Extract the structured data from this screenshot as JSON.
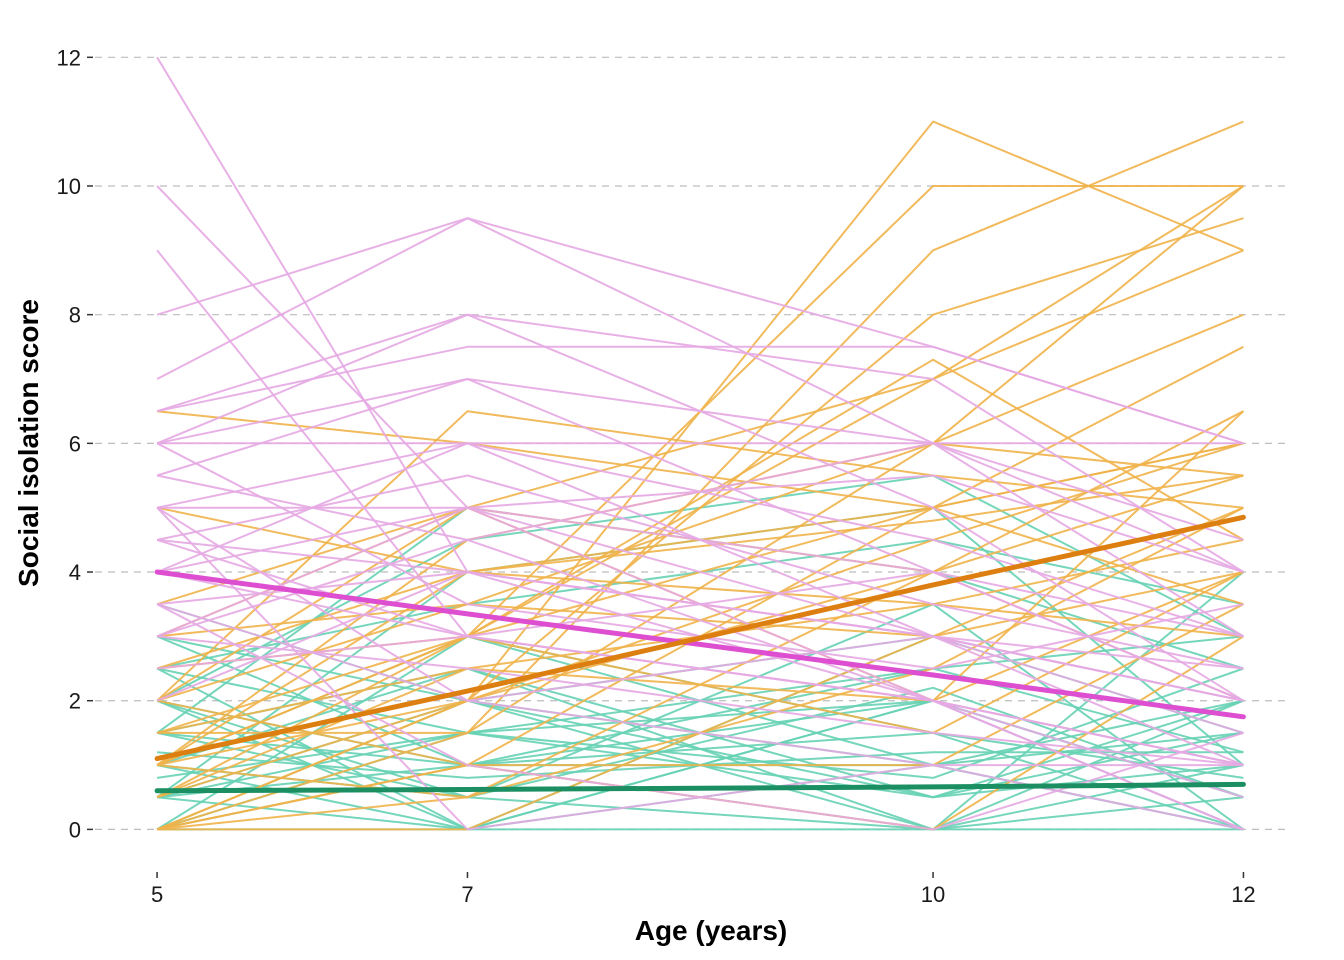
{
  "chart_data": {
    "type": "line",
    "title": "",
    "xlabel": "Age (years)",
    "ylabel": "Social isolation score",
    "x": [
      5,
      7,
      10,
      12
    ],
    "x_tick_labels": [
      "5",
      "7",
      "10",
      "12"
    ],
    "y_ticks": [
      0,
      2,
      4,
      6,
      8,
      10,
      12
    ],
    "y_tick_labels": [
      "0",
      "2",
      "4",
      "6",
      "8",
      "10",
      "12"
    ],
    "xlim": [
      4.6,
      12.3
    ],
    "ylim": [
      -0.6,
      12.3
    ],
    "grid": "horizontal dashed",
    "legend": "none",
    "group_colors": {
      "decreasing": "#e6a8e3",
      "increasing": "#f0b24a",
      "low_stable": "#66d2b4"
    },
    "trend_colors": {
      "decreasing": "#dd4fd0",
      "increasing": "#dd7f10",
      "low_stable": "#1b8e62"
    },
    "series": [
      {
        "group": "decreasing",
        "values": [
          4.0,
          3.35,
          2.4,
          1.75
        ],
        "role": "mean-trend"
      },
      {
        "group": "increasing",
        "values": [
          1.1,
          2.15,
          3.8,
          4.85
        ],
        "role": "mean-trend"
      },
      {
        "group": "low_stable",
        "values": [
          0.6,
          0.62,
          0.66,
          0.7
        ],
        "role": "mean-trend"
      },
      {
        "group": "decreasing",
        "values": [
          12,
          4,
          3,
          2
        ]
      },
      {
        "group": "decreasing",
        "values": [
          10,
          5,
          2,
          1
        ]
      },
      {
        "group": "decreasing",
        "values": [
          9,
          3,
          2,
          1
        ]
      },
      {
        "group": "decreasing",
        "values": [
          8,
          9.5,
          6,
          4
        ]
      },
      {
        "group": "decreasing",
        "values": [
          7,
          9.5,
          7.5,
          6
        ]
      },
      {
        "group": "decreasing",
        "values": [
          6.5,
          8,
          7,
          4
        ]
      },
      {
        "group": "decreasing",
        "values": [
          6.5,
          7.5,
          7.5,
          6
        ]
      },
      {
        "group": "decreasing",
        "values": [
          6,
          7,
          6,
          3
        ]
      },
      {
        "group": "decreasing",
        "values": [
          6,
          8,
          5,
          2
        ]
      },
      {
        "group": "decreasing",
        "values": [
          5.5,
          7,
          4,
          2
        ]
      },
      {
        "group": "decreasing",
        "values": [
          5,
          6,
          4.5,
          3
        ]
      },
      {
        "group": "decreasing",
        "values": [
          5,
          5,
          3,
          1
        ]
      },
      {
        "group": "decreasing",
        "values": [
          4.5,
          4,
          2,
          1
        ]
      },
      {
        "group": "decreasing",
        "values": [
          4.5,
          5.5,
          3.5,
          2.5
        ]
      },
      {
        "group": "decreasing",
        "values": [
          4,
          3,
          2,
          0
        ]
      },
      {
        "group": "decreasing",
        "values": [
          4,
          6,
          3,
          2
        ]
      },
      {
        "group": "decreasing",
        "values": [
          3.5,
          4,
          3,
          1.5
        ]
      },
      {
        "group": "decreasing",
        "values": [
          3.5,
          2,
          1,
          1
        ]
      },
      {
        "group": "decreasing",
        "values": [
          3,
          4.5,
          2,
          0
        ]
      },
      {
        "group": "decreasing",
        "values": [
          3,
          2.5,
          1.5,
          1
        ]
      },
      {
        "group": "decreasing",
        "values": [
          2.5,
          3,
          2,
          0.5
        ]
      },
      {
        "group": "decreasing",
        "values": [
          2,
          4,
          3,
          2
        ]
      },
      {
        "group": "decreasing",
        "values": [
          5,
          0,
          1,
          0
        ]
      },
      {
        "group": "decreasing",
        "values": [
          6,
          6,
          6,
          6
        ]
      },
      {
        "group": "decreasing",
        "values": [
          4,
          5,
          5.5,
          4
        ]
      },
      {
        "group": "decreasing",
        "values": [
          5.5,
          4.5,
          6,
          4.5
        ]
      },
      {
        "group": "decreasing",
        "values": [
          3,
          5,
          4,
          3
        ]
      },
      {
        "group": "decreasing",
        "values": [
          4.5,
          3,
          4,
          2
        ]
      },
      {
        "group": "decreasing",
        "values": [
          6,
          3.5,
          2.5,
          3.5
        ]
      },
      {
        "group": "decreasing",
        "values": [
          5,
          2,
          3,
          2.5
        ]
      },
      {
        "group": "decreasing",
        "values": [
          3.5,
          1,
          0,
          1.5
        ]
      },
      {
        "group": "increasing",
        "values": [
          0,
          2,
          11,
          9
        ]
      },
      {
        "group": "increasing",
        "values": [
          1,
          3,
          10,
          10
        ]
      },
      {
        "group": "increasing",
        "values": [
          0,
          1.5,
          9,
          11
        ]
      },
      {
        "group": "increasing",
        "values": [
          0.5,
          2,
          8,
          9.5
        ]
      },
      {
        "group": "increasing",
        "values": [
          1,
          3,
          7,
          10
        ]
      },
      {
        "group": "increasing",
        "values": [
          2,
          5,
          7,
          9
        ]
      },
      {
        "group": "increasing",
        "values": [
          1.5,
          1.5,
          6,
          8
        ]
      },
      {
        "group": "increasing",
        "values": [
          0,
          1,
          5,
          7.5
        ]
      },
      {
        "group": "increasing",
        "values": [
          0,
          0.5,
          4,
          6.5
        ]
      },
      {
        "group": "increasing",
        "values": [
          1,
          2,
          4.5,
          6
        ]
      },
      {
        "group": "increasing",
        "values": [
          2.5,
          3,
          5,
          6
        ]
      },
      {
        "group": "increasing",
        "values": [
          6.5,
          6,
          5,
          6
        ]
      },
      {
        "group": "increasing",
        "values": [
          2,
          6.5,
          5.5,
          5
        ]
      },
      {
        "group": "increasing",
        "values": [
          3.5,
          5,
          4,
          5.5
        ]
      },
      {
        "group": "increasing",
        "values": [
          0,
          0,
          3,
          5
        ]
      },
      {
        "group": "increasing",
        "values": [
          1,
          4,
          3.5,
          4.5
        ]
      },
      {
        "group": "increasing",
        "values": [
          3,
          3.5,
          3,
          4
        ]
      },
      {
        "group": "increasing",
        "values": [
          0.5,
          2.5,
          2,
          4
        ]
      },
      {
        "group": "increasing",
        "values": [
          2,
          1,
          1,
          3.5
        ]
      },
      {
        "group": "increasing",
        "values": [
          1.5,
          2.5,
          3.5,
          3
        ]
      },
      {
        "group": "increasing",
        "values": [
          0,
          1,
          0,
          3
        ]
      },
      {
        "group": "increasing",
        "values": [
          1,
          4.5,
          6,
          5.5
        ]
      },
      {
        "group": "increasing",
        "values": [
          0.5,
          3,
          7.3,
          4.5
        ]
      },
      {
        "group": "increasing",
        "values": [
          2,
          3.5,
          6,
          10
        ]
      },
      {
        "group": "increasing",
        "values": [
          3,
          5,
          2,
          6.5
        ]
      },
      {
        "group": "increasing",
        "values": [
          0,
          2,
          4,
          2
        ]
      },
      {
        "group": "increasing",
        "values": [
          1,
          0.5,
          2.5,
          5
        ]
      },
      {
        "group": "increasing",
        "values": [
          5,
          4,
          4.8,
          5.5
        ]
      },
      {
        "group": "increasing",
        "values": [
          2.5,
          4,
          5,
          3.5
        ]
      },
      {
        "group": "increasing",
        "values": [
          1.5,
          3,
          1.5,
          4
        ]
      },
      {
        "group": "low_stable",
        "values": [
          0,
          0,
          0,
          0
        ]
      },
      {
        "group": "low_stable",
        "values": [
          0.5,
          1,
          0,
          0.5
        ]
      },
      {
        "group": "low_stable",
        "values": [
          1,
          0,
          1,
          0
        ]
      },
      {
        "group": "low_stable",
        "values": [
          0,
          1.5,
          0.5,
          1
        ]
      },
      {
        "group": "low_stable",
        "values": [
          1.5,
          0.5,
          0,
          1
        ]
      },
      {
        "group": "low_stable",
        "values": [
          2,
          1,
          1.5,
          0
        ]
      },
      {
        "group": "low_stable",
        "values": [
          0.5,
          2,
          1,
          2
        ]
      },
      {
        "group": "low_stable",
        "values": [
          2.5,
          0,
          2,
          1
        ]
      },
      {
        "group": "low_stable",
        "values": [
          1,
          2.5,
          0.5,
          1.5
        ]
      },
      {
        "group": "low_stable",
        "values": [
          3,
          1,
          2,
          0.5
        ]
      },
      {
        "group": "low_stable",
        "values": [
          0,
          3,
          1,
          0
        ]
      },
      {
        "group": "low_stable",
        "values": [
          3.5,
          2,
          3,
          2
        ]
      },
      {
        "group": "low_stable",
        "values": [
          2,
          4.5,
          5.5,
          3
        ]
      },
      {
        "group": "low_stable",
        "values": [
          1.5,
          5,
          4,
          2.5
        ]
      },
      {
        "group": "low_stable",
        "values": [
          0.5,
          4,
          5,
          1
        ]
      },
      {
        "group": "low_stable",
        "values": [
          2.5,
          3.5,
          4.5,
          3.5
        ]
      },
      {
        "group": "low_stable",
        "values": [
          1,
          0.5,
          3.5,
          0
        ]
      },
      {
        "group": "low_stable",
        "values": [
          0,
          1,
          2.5,
          3
        ]
      },
      {
        "group": "low_stable",
        "values": [
          1.2,
          0.8,
          1.2,
          1.2
        ]
      },
      {
        "group": "low_stable",
        "values": [
          0.8,
          1.5,
          0.8,
          2.5
        ]
      },
      {
        "group": "low_stable",
        "values": [
          2,
          0.5,
          2.2,
          0.5
        ]
      },
      {
        "group": "low_stable",
        "values": [
          1.5,
          2.5,
          0,
          4
        ]
      },
      {
        "group": "low_stable",
        "values": [
          0.5,
          0,
          3,
          1.5
        ]
      },
      {
        "group": "low_stable",
        "values": [
          3,
          2,
          0.5,
          2
        ]
      },
      {
        "group": "low_stable",
        "values": [
          1,
          3,
          1.5,
          0.8
        ]
      },
      {
        "group": "low_stable",
        "values": [
          2.5,
          1.5,
          2.5,
          1.2
        ]
      },
      {
        "group": "low_stable",
        "values": [
          0,
          2,
          0,
          2
        ]
      },
      {
        "group": "low_stable",
        "values": [
          2,
          0,
          2,
          0
        ]
      },
      {
        "group": "low_stable",
        "values": [
          1.5,
          1,
          1,
          1.5
        ]
      },
      {
        "group": "low_stable",
        "values": [
          0.5,
          1.5,
          2,
          0.5
        ]
      }
    ]
  }
}
